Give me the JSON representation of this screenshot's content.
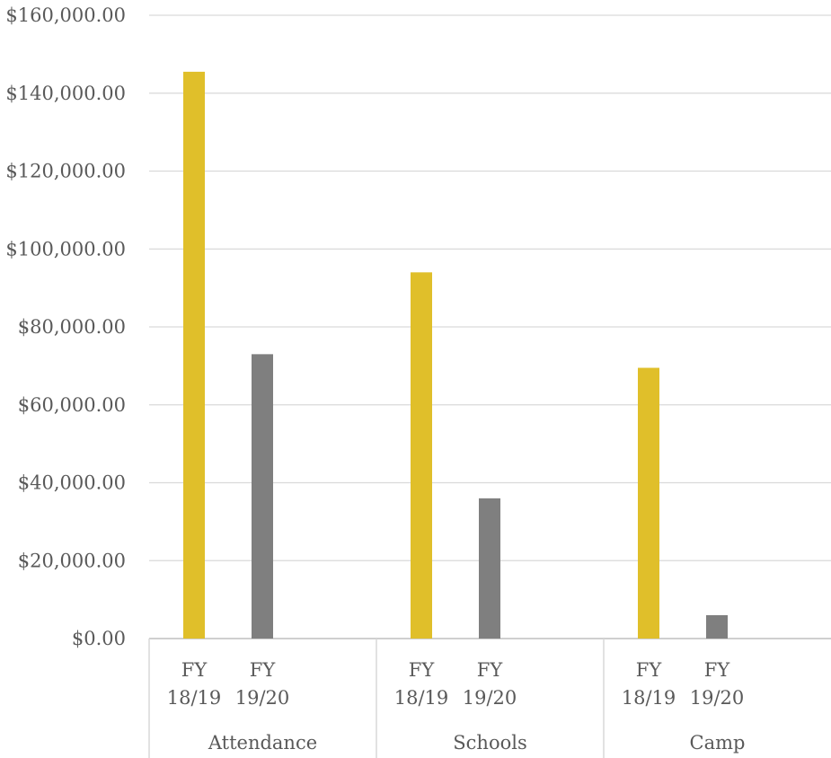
{
  "chart_data": {
    "type": "bar",
    "title": "",
    "xlabel": "",
    "ylabel": "",
    "ylim": [
      0,
      160000
    ],
    "y_ticks": [
      {
        "value": 0,
        "label": "$0.00"
      },
      {
        "value": 20000,
        "label": "$20,000.00"
      },
      {
        "value": 40000,
        "label": "$40,000.00"
      },
      {
        "value": 60000,
        "label": "$60,000.00"
      },
      {
        "value": 80000,
        "label": "$80,000.00"
      },
      {
        "value": 100000,
        "label": "$100,000.00"
      },
      {
        "value": 120000,
        "label": "$120,000.00"
      },
      {
        "value": 140000,
        "label": "$140,000.00"
      },
      {
        "value": 160000,
        "label": "$160,000.00"
      }
    ],
    "grid": true,
    "legend": "none",
    "groups": [
      {
        "label": "Attendance",
        "bars": [
          {
            "label_line1": "FY",
            "label_line2": "18/19",
            "value": 145500,
            "color": "#E0BF2A"
          },
          {
            "label_line1": "FY",
            "label_line2": "19/20",
            "value": 73000,
            "color": "#7F7F7F"
          }
        ]
      },
      {
        "label": "Schools",
        "bars": [
          {
            "label_line1": "FY",
            "label_line2": "18/19",
            "value": 94000,
            "color": "#E0BF2A"
          },
          {
            "label_line1": "FY",
            "label_line2": "19/20",
            "value": 36000,
            "color": "#7F7F7F"
          }
        ]
      },
      {
        "label": "Camp",
        "bars": [
          {
            "label_line1": "FY",
            "label_line2": "18/19",
            "value": 69500,
            "color": "#E0BF2A"
          },
          {
            "label_line1": "FY",
            "label_line2": "19/20",
            "value": 6000,
            "color": "#7F7F7F"
          }
        ]
      }
    ]
  }
}
